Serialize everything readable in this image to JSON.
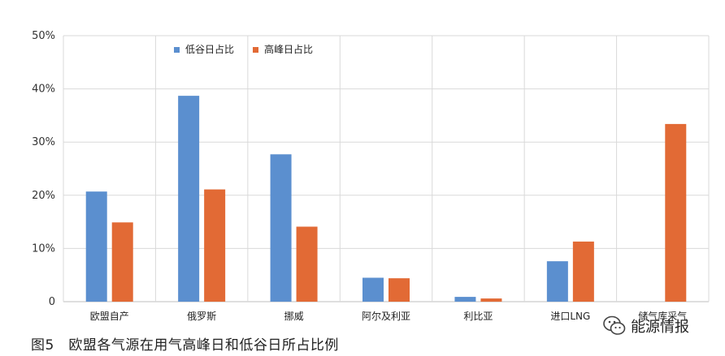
{
  "chart_data": {
    "type": "bar",
    "categories": [
      "欧盟自产",
      "俄罗斯",
      "挪威",
      "阿尔及利亚",
      "利比亚",
      "进口LNG",
      "储气库采气"
    ],
    "series": [
      {
        "name": "低谷日占比",
        "values": [
          20.7,
          38.7,
          27.7,
          4.5,
          0.9,
          7.6,
          0
        ],
        "color": "#5b8fcf"
      },
      {
        "name": "高峰日占比",
        "values": [
          14.9,
          21.1,
          14.1,
          4.4,
          0.6,
          11.3,
          33.4
        ],
        "color": "#e26a35"
      }
    ],
    "yticks": [
      "0",
      "10%",
      "20%",
      "30%",
      "40%",
      "50%"
    ],
    "ylim": [
      0,
      50
    ],
    "grid": true,
    "legend_position": "top-left"
  },
  "caption": "图5　欧盟各气源在用气高峰日和低谷日所占比例",
  "watermark": {
    "text": "能源情报",
    "icon": "wechat-icon"
  }
}
